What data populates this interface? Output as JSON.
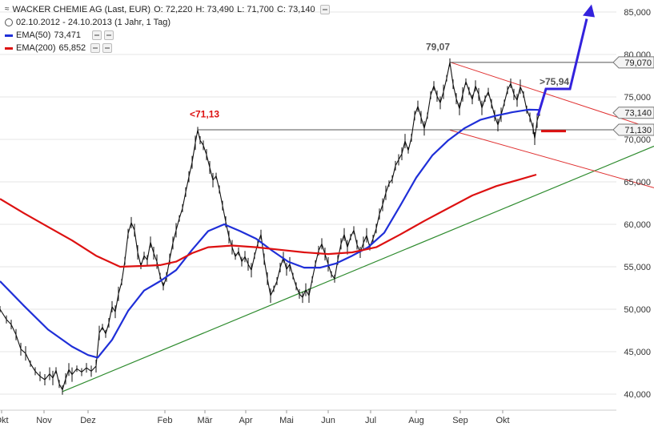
{
  "legend": {
    "line1_prefix": "WACKER CHEMIE AG (Last, EUR)",
    "open": "O: 72,220",
    "high": "H: 73,490",
    "low": "L: 71,700",
    "close": "C: 73,140",
    "line2": "02.10.2012 - 24.10.2013 (1 Jahr, 1 Tag)",
    "ema50_label": "EMA(50)",
    "ema50_value": "73,471",
    "ema200_label": "EMA(200)",
    "ema200_value": "65,852"
  },
  "colors": {
    "ema50": "#1f2fd8",
    "ema200": "#dd1111",
    "price": "#111111",
    "support": "#2e8b2e",
    "channel": "#e03030",
    "projection": "#3322dd",
    "resistance": "#555555",
    "grid": "#e6e6e6"
  },
  "chart_data": {
    "type": "line",
    "y_axis": {
      "ticks": [
        "85,000",
        "80,000",
        "75,000",
        "70,000",
        "65,000",
        "60,000",
        "55,000",
        "50,000",
        "45,000",
        "40,000"
      ],
      "ylim": [
        39500,
        86500
      ],
      "grid": true,
      "position": "right"
    },
    "x_axis": {
      "ticks": [
        "Okt",
        "Nov",
        "Dez",
        "Feb",
        "Mär",
        "Apr",
        "Mai",
        "Jun",
        "Jul",
        "Aug",
        "Sep",
        "Okt"
      ]
    },
    "price_labels": [
      {
        "text": "79,070",
        "value": 79070
      },
      {
        "text": "73,140",
        "value": 73140
      },
      {
        "text": "71,130",
        "value": 71130
      }
    ],
    "annotations": [
      {
        "text": "79,07",
        "color": "#555555"
      },
      {
        "text": "<71,13",
        "color": "#dd1111"
      },
      {
        "text": ">75,94",
        "color": "#555555"
      }
    ],
    "price_series": [
      {
        "x": 0,
        "y": 50000
      },
      {
        "x": 8,
        "y": 48800
      },
      {
        "x": 14,
        "y": 48200
      },
      {
        "x": 20,
        "y": 47000
      },
      {
        "x": 26,
        "y": 45300
      },
      {
        "x": 32,
        "y": 44800
      },
      {
        "x": 38,
        "y": 43600
      },
      {
        "x": 44,
        "y": 42700
      },
      {
        "x": 50,
        "y": 42100
      },
      {
        "x": 56,
        "y": 41700
      },
      {
        "x": 62,
        "y": 42400
      },
      {
        "x": 66,
        "y": 41900
      },
      {
        "x": 70,
        "y": 42800
      },
      {
        "x": 74,
        "y": 41200
      },
      {
        "x": 78,
        "y": 40500
      },
      {
        "x": 82,
        "y": 41800
      },
      {
        "x": 86,
        "y": 42900
      },
      {
        "x": 90,
        "y": 42300
      },
      {
        "x": 96,
        "y": 43000
      },
      {
        "x": 102,
        "y": 42600
      },
      {
        "x": 108,
        "y": 43100
      },
      {
        "x": 114,
        "y": 42700
      },
      {
        "x": 120,
        "y": 43300
      },
      {
        "x": 124,
        "y": 47200
      },
      {
        "x": 128,
        "y": 47900
      },
      {
        "x": 132,
        "y": 47100
      },
      {
        "x": 136,
        "y": 48400
      },
      {
        "x": 140,
        "y": 50300
      },
      {
        "x": 144,
        "y": 49700
      },
      {
        "x": 148,
        "y": 51800
      },
      {
        "x": 152,
        "y": 53200
      },
      {
        "x": 156,
        "y": 55700
      },
      {
        "x": 160,
        "y": 58900
      },
      {
        "x": 164,
        "y": 60200
      },
      {
        "x": 168,
        "y": 59300
      },
      {
        "x": 172,
        "y": 56700
      },
      {
        "x": 176,
        "y": 55100
      },
      {
        "x": 180,
        "y": 56300
      },
      {
        "x": 184,
        "y": 55800
      },
      {
        "x": 188,
        "y": 57900
      },
      {
        "x": 192,
        "y": 56600
      },
      {
        "x": 196,
        "y": 55600
      },
      {
        "x": 200,
        "y": 53900
      },
      {
        "x": 204,
        "y": 52700
      },
      {
        "x": 208,
        "y": 53800
      },
      {
        "x": 212,
        "y": 55900
      },
      {
        "x": 216,
        "y": 57800
      },
      {
        "x": 220,
        "y": 59300
      },
      {
        "x": 224,
        "y": 60700
      },
      {
        "x": 228,
        "y": 61900
      },
      {
        "x": 232,
        "y": 63800
      },
      {
        "x": 236,
        "y": 65600
      },
      {
        "x": 240,
        "y": 67300
      },
      {
        "x": 244,
        "y": 69600
      },
      {
        "x": 247,
        "y": 71100
      },
      {
        "x": 250,
        "y": 69900
      },
      {
        "x": 254,
        "y": 69300
      },
      {
        "x": 258,
        "y": 68200
      },
      {
        "x": 262,
        "y": 66700
      },
      {
        "x": 266,
        "y": 65200
      },
      {
        "x": 270,
        "y": 65700
      },
      {
        "x": 274,
        "y": 64100
      },
      {
        "x": 278,
        "y": 62200
      },
      {
        "x": 282,
        "y": 60300
      },
      {
        "x": 286,
        "y": 58500
      },
      {
        "x": 290,
        "y": 57300
      },
      {
        "x": 294,
        "y": 56200
      },
      {
        "x": 298,
        "y": 56800
      },
      {
        "x": 302,
        "y": 55600
      },
      {
        "x": 306,
        "y": 56200
      },
      {
        "x": 310,
        "y": 55300
      },
      {
        "x": 314,
        "y": 54600
      },
      {
        "x": 318,
        "y": 56300
      },
      {
        "x": 322,
        "y": 57700
      },
      {
        "x": 326,
        "y": 58800
      },
      {
        "x": 330,
        "y": 55900
      },
      {
        "x": 334,
        "y": 53600
      },
      {
        "x": 338,
        "y": 51600
      },
      {
        "x": 342,
        "y": 52400
      },
      {
        "x": 346,
        "y": 53300
      },
      {
        "x": 350,
        "y": 54900
      },
      {
        "x": 354,
        "y": 56100
      },
      {
        "x": 358,
        "y": 54700
      },
      {
        "x": 362,
        "y": 55300
      },
      {
        "x": 366,
        "y": 53900
      },
      {
        "x": 370,
        "y": 52700
      },
      {
        "x": 374,
        "y": 51800
      },
      {
        "x": 378,
        "y": 51400
      },
      {
        "x": 382,
        "y": 52300
      },
      {
        "x": 386,
        "y": 51600
      },
      {
        "x": 390,
        "y": 53500
      },
      {
        "x": 394,
        "y": 55300
      },
      {
        "x": 398,
        "y": 56900
      },
      {
        "x": 402,
        "y": 57700
      },
      {
        "x": 406,
        "y": 56500
      },
      {
        "x": 410,
        "y": 55300
      },
      {
        "x": 414,
        "y": 54100
      },
      {
        "x": 418,
        "y": 53600
      },
      {
        "x": 422,
        "y": 55800
      },
      {
        "x": 426,
        "y": 57700
      },
      {
        "x": 430,
        "y": 58800
      },
      {
        "x": 434,
        "y": 57300
      },
      {
        "x": 438,
        "y": 58500
      },
      {
        "x": 442,
        "y": 59300
      },
      {
        "x": 446,
        "y": 57600
      },
      {
        "x": 450,
        "y": 56700
      },
      {
        "x": 454,
        "y": 57800
      },
      {
        "x": 458,
        "y": 58700
      },
      {
        "x": 462,
        "y": 57300
      },
      {
        "x": 466,
        "y": 58300
      },
      {
        "x": 470,
        "y": 59500
      },
      {
        "x": 474,
        "y": 61200
      },
      {
        "x": 478,
        "y": 62300
      },
      {
        "x": 482,
        "y": 63700
      },
      {
        "x": 486,
        "y": 64800
      },
      {
        "x": 490,
        "y": 65300
      },
      {
        "x": 494,
        "y": 66900
      },
      {
        "x": 498,
        "y": 67600
      },
      {
        "x": 502,
        "y": 68300
      },
      {
        "x": 506,
        "y": 69800
      },
      {
        "x": 510,
        "y": 68700
      },
      {
        "x": 514,
        "y": 70200
      },
      {
        "x": 518,
        "y": 72800
      },
      {
        "x": 522,
        "y": 73900
      },
      {
        "x": 526,
        "y": 72600
      },
      {
        "x": 530,
        "y": 71300
      },
      {
        "x": 534,
        "y": 72800
      },
      {
        "x": 538,
        "y": 75200
      },
      {
        "x": 542,
        "y": 76300
      },
      {
        "x": 546,
        "y": 75100
      },
      {
        "x": 550,
        "y": 74300
      },
      {
        "x": 554,
        "y": 75600
      },
      {
        "x": 558,
        "y": 77200
      },
      {
        "x": 562,
        "y": 79070
      },
      {
        "x": 566,
        "y": 76500
      },
      {
        "x": 570,
        "y": 74800
      },
      {
        "x": 574,
        "y": 73600
      },
      {
        "x": 578,
        "y": 75300
      },
      {
        "x": 582,
        "y": 76800
      },
      {
        "x": 586,
        "y": 75700
      },
      {
        "x": 590,
        "y": 74700
      },
      {
        "x": 594,
        "y": 76300
      },
      {
        "x": 598,
        "y": 75300
      },
      {
        "x": 602,
        "y": 73700
      },
      {
        "x": 606,
        "y": 74800
      },
      {
        "x": 610,
        "y": 75600
      },
      {
        "x": 614,
        "y": 74200
      },
      {
        "x": 618,
        "y": 72800
      },
      {
        "x": 622,
        "y": 71700
      },
      {
        "x": 626,
        "y": 72900
      },
      {
        "x": 630,
        "y": 74300
      },
      {
        "x": 634,
        "y": 75800
      },
      {
        "x": 638,
        "y": 76600
      },
      {
        "x": 642,
        "y": 75300
      },
      {
        "x": 646,
        "y": 74600
      },
      {
        "x": 650,
        "y": 76200
      },
      {
        "x": 654,
        "y": 75300
      },
      {
        "x": 658,
        "y": 73500
      },
      {
        "x": 662,
        "y": 72600
      },
      {
        "x": 666,
        "y": 71300
      },
      {
        "x": 668,
        "y": 70100
      },
      {
        "x": 671,
        "y": 72200
      },
      {
        "x": 674,
        "y": 73140
      }
    ],
    "series": [
      {
        "name": "EMA(50)",
        "points": [
          {
            "x": 0,
            "y": 53300
          },
          {
            "x": 30,
            "y": 50400
          },
          {
            "x": 60,
            "y": 47600
          },
          {
            "x": 90,
            "y": 45600
          },
          {
            "x": 110,
            "y": 44600
          },
          {
            "x": 122,
            "y": 44300
          },
          {
            "x": 140,
            "y": 46400
          },
          {
            "x": 160,
            "y": 49800
          },
          {
            "x": 180,
            "y": 52200
          },
          {
            "x": 200,
            "y": 53300
          },
          {
            "x": 220,
            "y": 54600
          },
          {
            "x": 240,
            "y": 57000
          },
          {
            "x": 260,
            "y": 59200
          },
          {
            "x": 280,
            "y": 60000
          },
          {
            "x": 300,
            "y": 59200
          },
          {
            "x": 320,
            "y": 58300
          },
          {
            "x": 340,
            "y": 56900
          },
          {
            "x": 360,
            "y": 55600
          },
          {
            "x": 380,
            "y": 54900
          },
          {
            "x": 400,
            "y": 54900
          },
          {
            "x": 420,
            "y": 55400
          },
          {
            "x": 440,
            "y": 56300
          },
          {
            "x": 460,
            "y": 57300
          },
          {
            "x": 480,
            "y": 59000
          },
          {
            "x": 500,
            "y": 62200
          },
          {
            "x": 520,
            "y": 65500
          },
          {
            "x": 540,
            "y": 68100
          },
          {
            "x": 560,
            "y": 69900
          },
          {
            "x": 580,
            "y": 71300
          },
          {
            "x": 600,
            "y": 72300
          },
          {
            "x": 620,
            "y": 72800
          },
          {
            "x": 640,
            "y": 73200
          },
          {
            "x": 660,
            "y": 73500
          },
          {
            "x": 674,
            "y": 73471
          }
        ]
      },
      {
        "name": "EMA(200)",
        "points": [
          {
            "x": 0,
            "y": 63000
          },
          {
            "x": 30,
            "y": 61300
          },
          {
            "x": 60,
            "y": 59700
          },
          {
            "x": 90,
            "y": 58100
          },
          {
            "x": 120,
            "y": 56300
          },
          {
            "x": 150,
            "y": 55000
          },
          {
            "x": 180,
            "y": 55100
          },
          {
            "x": 200,
            "y": 55200
          },
          {
            "x": 220,
            "y": 55600
          },
          {
            "x": 240,
            "y": 56600
          },
          {
            "x": 260,
            "y": 57300
          },
          {
            "x": 290,
            "y": 57500
          },
          {
            "x": 320,
            "y": 57300
          },
          {
            "x": 350,
            "y": 57000
          },
          {
            "x": 380,
            "y": 56700
          },
          {
            "x": 410,
            "y": 56500
          },
          {
            "x": 440,
            "y": 56700
          },
          {
            "x": 470,
            "y": 57300
          },
          {
            "x": 500,
            "y": 58800
          },
          {
            "x": 530,
            "y": 60400
          },
          {
            "x": 560,
            "y": 61900
          },
          {
            "x": 590,
            "y": 63400
          },
          {
            "x": 620,
            "y": 64500
          },
          {
            "x": 650,
            "y": 65300
          },
          {
            "x": 670,
            "y": 65852
          }
        ]
      }
    ]
  }
}
